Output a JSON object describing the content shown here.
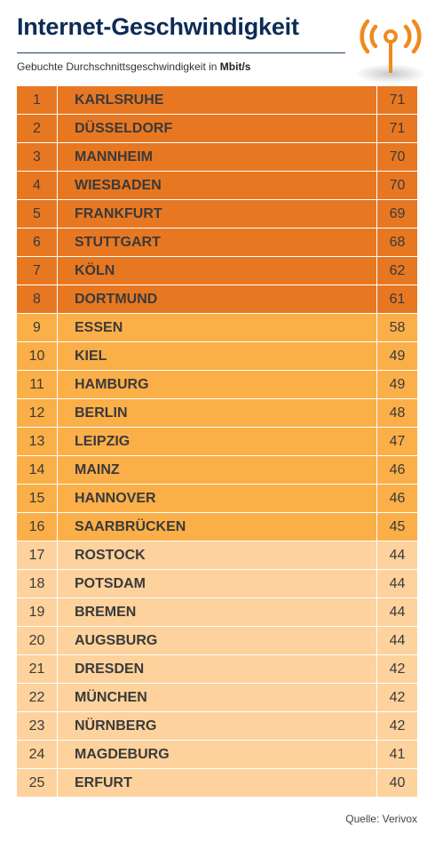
{
  "header": {
    "title": "Internet-Geschwindigkeit",
    "subtitle_prefix": "Gebuchte Durchschnittsgeschwindigkeit in",
    "subtitle_unit": "Mbit/s",
    "icon": "antenna-signal-icon"
  },
  "colors": {
    "title": "#0d2b55",
    "top_tier": "#e87722",
    "mid_tier": "#fbaf48",
    "low_tier": "#fdd29c",
    "icon": "#f08a1c"
  },
  "chart_data": {
    "type": "table",
    "title": "Internet-Geschwindigkeit",
    "subtitle": "Gebuchte Durchschnittsgeschwindigkeit in Mbit/s",
    "rows": [
      {
        "rank": "1",
        "city": "KARLSRUHE",
        "value": "71",
        "tier": 1
      },
      {
        "rank": "2",
        "city": "DÜSSELDORF",
        "value": "71",
        "tier": 1
      },
      {
        "rank": "3",
        "city": "MANNHEIM",
        "value": "70",
        "tier": 1
      },
      {
        "rank": "4",
        "city": "WIESBADEN",
        "value": "70",
        "tier": 1
      },
      {
        "rank": "5",
        "city": "FRANKFURT",
        "value": "69",
        "tier": 1
      },
      {
        "rank": "6",
        "city": "STUTTGART",
        "value": "68",
        "tier": 1
      },
      {
        "rank": "7",
        "city": "KÖLN",
        "value": "62",
        "tier": 1
      },
      {
        "rank": "8",
        "city": "DORTMUND",
        "value": "61",
        "tier": 1
      },
      {
        "rank": "9",
        "city": "ESSEN",
        "value": "58",
        "tier": 2
      },
      {
        "rank": "10",
        "city": "KIEL",
        "value": "49",
        "tier": 2
      },
      {
        "rank": "11",
        "city": "HAMBURG",
        "value": "49",
        "tier": 2
      },
      {
        "rank": "12",
        "city": "BERLIN",
        "value": "48",
        "tier": 2
      },
      {
        "rank": "13",
        "city": "LEIPZIG",
        "value": "47",
        "tier": 2
      },
      {
        "rank": "14",
        "city": "MAINZ",
        "value": "46",
        "tier": 2
      },
      {
        "rank": "15",
        "city": "HANNOVER",
        "value": "46",
        "tier": 2
      },
      {
        "rank": "16",
        "city": "SAARBRÜCKEN",
        "value": "45",
        "tier": 2
      },
      {
        "rank": "17",
        "city": "ROSTOCK",
        "value": "44",
        "tier": 3
      },
      {
        "rank": "18",
        "city": "POTSDAM",
        "value": "44",
        "tier": 3
      },
      {
        "rank": "19",
        "city": "BREMEN",
        "value": "44",
        "tier": 3
      },
      {
        "rank": "20",
        "city": "AUGSBURG",
        "value": "44",
        "tier": 3
      },
      {
        "rank": "21",
        "city": "DRESDEN",
        "value": "42",
        "tier": 3
      },
      {
        "rank": "22",
        "city": "MÜNCHEN",
        "value": "42",
        "tier": 3
      },
      {
        "rank": "23",
        "city": "NÜRNBERG",
        "value": "42",
        "tier": 3
      },
      {
        "rank": "24",
        "city": "MAGDEBURG",
        "value": "41",
        "tier": 3
      },
      {
        "rank": "25",
        "city": "ERFURT",
        "value": "40",
        "tier": 3
      }
    ]
  },
  "footer": {
    "source": "Quelle: Verivox"
  }
}
